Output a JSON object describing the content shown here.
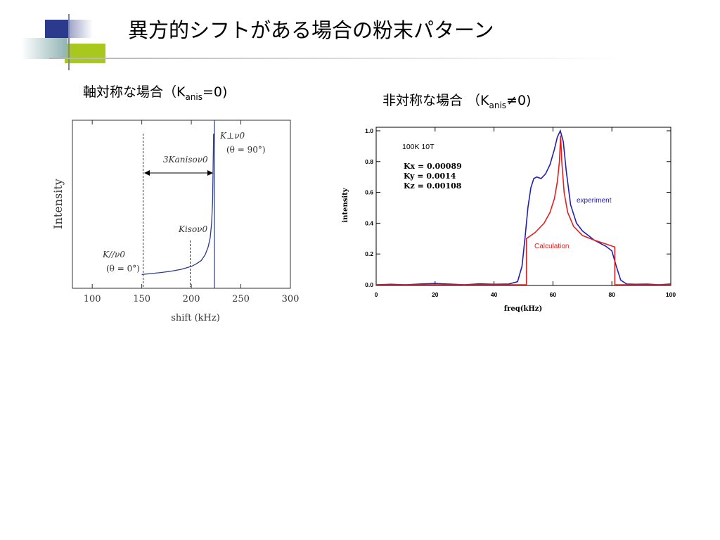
{
  "slide": {
    "title": "異方的シフトがある場合の粉末パターン",
    "left_heading": {
      "prefix": "軸対称な場合（K",
      "sub": "anis",
      "suffix": "=0)"
    },
    "right_heading": {
      "prefix": "非対称な場合 （K",
      "sub": "anis",
      "suffix": "≠0)"
    }
  },
  "colors": {
    "accent_blue": "#2b3a8c",
    "accent_green": "#a8c81e",
    "accent_teal": "#8fb3b3",
    "experiment": "#2020b0",
    "calculation": "#e02020",
    "left_curve": "#2b3a8c"
  },
  "chart_data": [
    {
      "type": "line",
      "title": "",
      "xlabel": "shift (kHz)",
      "ylabel": "Intensity",
      "xlim": [
        80,
        300
      ],
      "ylim": [
        0,
        1
      ],
      "x_ticks": [
        100,
        150,
        200,
        250,
        300
      ],
      "x_tick_labels": [
        "100",
        "150",
        "200",
        "250",
        "300"
      ],
      "grid": false,
      "series": [
        {
          "x": [
            150,
            160,
            170,
            180,
            190,
            200,
            205,
            210,
            214,
            217,
            219,
            220.5,
            221.5,
            222,
            222.5
          ],
          "y": [
            0.082,
            0.088,
            0.094,
            0.102,
            0.113,
            0.13,
            0.145,
            0.165,
            0.2,
            0.245,
            0.3,
            0.39,
            0.52,
            0.72,
            0.92
          ]
        }
      ],
      "annotations": {
        "k_perp_line1": "K⊥ν0",
        "k_perp_line2": "(θ = 90°)",
        "k_aniso": "3Kanisoν0",
        "k_iso": "Kisoν0",
        "k_par_line1": "K//ν0",
        "k_par_line2": "(θ = 0°)"
      }
    },
    {
      "type": "line",
      "title": "",
      "xlabel": "freq(kHz)",
      "ylabel": "intensity",
      "xlim": [
        0,
        100
      ],
      "ylim": [
        0,
        1.0
      ],
      "x_ticks": [
        0,
        20,
        40,
        60,
        80,
        100
      ],
      "x_tick_labels": [
        "0",
        "20",
        "40",
        "60",
        "80",
        "100"
      ],
      "y_ticks": [
        0,
        0.2,
        0.4,
        0.6,
        0.8,
        1.0
      ],
      "y_tick_labels": [
        "0.0",
        "0.2",
        "0.4",
        "0.6",
        "0.8",
        "1.0"
      ],
      "grid": false,
      "annotations": {
        "conditions": "100K  10T",
        "kx": "Kx = 0.00089",
        "ky": "Ky = 0.0014",
        "kz": "Kz = 0.00108"
      },
      "series": [
        {
          "name": "experiment",
          "x": [
            0,
            5,
            10,
            15,
            20,
            25,
            30,
            35,
            40,
            45,
            48,
            49.5,
            50.5,
            51.5,
            52.5,
            53.5,
            54.5,
            56,
            57.5,
            59,
            60.5,
            61.5,
            62.5,
            63.5,
            64.5,
            66,
            68,
            70,
            72,
            74,
            76,
            78,
            80,
            81.5,
            83,
            85,
            88,
            92,
            96,
            100
          ],
          "y": [
            0.0,
            0.003,
            0.0,
            0.005,
            0.008,
            0.004,
            0.0,
            0.006,
            0.003,
            0.005,
            0.02,
            0.12,
            0.3,
            0.5,
            0.63,
            0.69,
            0.7,
            0.69,
            0.72,
            0.78,
            0.88,
            0.96,
            1.0,
            0.93,
            0.74,
            0.52,
            0.4,
            0.35,
            0.32,
            0.29,
            0.27,
            0.25,
            0.22,
            0.12,
            0.03,
            0.005,
            0.003,
            0.004,
            0.0,
            0.005
          ]
        },
        {
          "name": "Calculation",
          "x": [
            0,
            51,
            51,
            54,
            57,
            59,
            60.5,
            61.5,
            62.2,
            62.6,
            63,
            63.8,
            65,
            67,
            70,
            74,
            78,
            81,
            81,
            100
          ],
          "y": [
            0.0,
            0.0,
            0.3,
            0.34,
            0.4,
            0.47,
            0.56,
            0.67,
            0.8,
            0.97,
            0.8,
            0.6,
            0.47,
            0.38,
            0.32,
            0.29,
            0.265,
            0.245,
            0.0,
            0.0
          ]
        }
      ]
    }
  ]
}
